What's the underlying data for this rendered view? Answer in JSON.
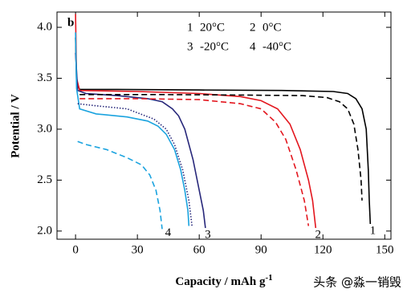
{
  "chart_data": {
    "type": "line",
    "panel_label": "b",
    "x_label": "Capacity / mAh g",
    "x_label_sup": "-1",
    "y_label": "Potential / V",
    "xlim": [
      -9,
      153
    ],
    "xticks": [
      0,
      30,
      60,
      90,
      120,
      150
    ],
    "ylim": [
      1.92,
      4.15
    ],
    "yticks": [
      {
        "value": 2,
        "label": "2.0"
      },
      2.5,
      {
        "value": 3,
        "label": "3.0"
      },
      3.5,
      {
        "value": 4,
        "label": "4.0"
      }
    ],
    "legend": [
      {
        "number": "1",
        "label": "20°C"
      },
      {
        "number": "2",
        "label": "0°C"
      },
      {
        "number": "3",
        "label": "-20°C"
      },
      {
        "number": "4",
        "label": "-40°C"
      }
    ],
    "curve_labels": [
      "1",
      "2",
      "3",
      "4"
    ],
    "series": [
      {
        "color": "#000000",
        "style": "solid",
        "x": [
          0,
          0.5,
          2,
          20,
          60,
          100,
          125,
          132,
          136,
          139,
          141,
          142,
          142.5,
          143
        ],
        "values": [
          3.9,
          3.45,
          3.39,
          3.39,
          3.385,
          3.38,
          3.37,
          3.35,
          3.3,
          3.2,
          3.0,
          2.6,
          2.3,
          2.07
        ]
      },
      {
        "color": "#e3161e",
        "style": "solid",
        "x": [
          0,
          0.5,
          2,
          30,
          60,
          80,
          90,
          98,
          104,
          109,
          113,
          115,
          116.5
        ],
        "values": [
          4.13,
          3.5,
          3.38,
          3.37,
          3.35,
          3.32,
          3.28,
          3.2,
          3.05,
          2.8,
          2.5,
          2.3,
          2.03
        ]
      },
      {
        "color": "#27277a",
        "style": "solid",
        "x": [
          0,
          1,
          5,
          20,
          35,
          42,
          47,
          50,
          53,
          57,
          60,
          62,
          63
        ],
        "values": [
          3.75,
          3.38,
          3.35,
          3.33,
          3.3,
          3.27,
          3.2,
          3.13,
          3.0,
          2.7,
          2.4,
          2.2,
          2.03
        ]
      },
      {
        "color": "#1aa3df",
        "style": "solid",
        "x": [
          0,
          0.5,
          2,
          10,
          25,
          35,
          40,
          44,
          48,
          51,
          53,
          54.5,
          55
        ],
        "values": [
          3.95,
          3.4,
          3.2,
          3.15,
          3.12,
          3.08,
          3.03,
          2.95,
          2.8,
          2.6,
          2.4,
          2.2,
          2.05
        ]
      },
      {
        "color": "#000000",
        "style": "dashed",
        "x": [
          2,
          40,
          80,
          110,
          122,
          128,
          132,
          135,
          137,
          138.5,
          139
        ],
        "values": [
          3.34,
          3.34,
          3.335,
          3.33,
          3.31,
          3.27,
          3.2,
          3.05,
          2.8,
          2.5,
          2.3
        ]
      },
      {
        "color": "#e3161e",
        "style": "dashed",
        "x": [
          2,
          30,
          60,
          80,
          90,
          97,
          102,
          107,
          111,
          113
        ],
        "values": [
          3.3,
          3.3,
          3.29,
          3.25,
          3.2,
          3.07,
          2.9,
          2.6,
          2.3,
          2.05
        ]
      },
      {
        "color": "#27277a",
        "style": "dotted",
        "x": [
          1,
          10,
          25,
          38,
          44,
          48,
          52,
          55,
          56.5
        ],
        "values": [
          3.25,
          3.23,
          3.2,
          3.1,
          3.0,
          2.85,
          2.6,
          2.3,
          2.05
        ]
      },
      {
        "color": "#1aa3df",
        "style": "dashed",
        "x": [
          1,
          5,
          15,
          25,
          32,
          36,
          39,
          41,
          42
        ],
        "values": [
          2.88,
          2.85,
          2.8,
          2.72,
          2.65,
          2.55,
          2.4,
          2.2,
          2.02
        ]
      }
    ],
    "watermark": "头条 @淼一销毁"
  }
}
